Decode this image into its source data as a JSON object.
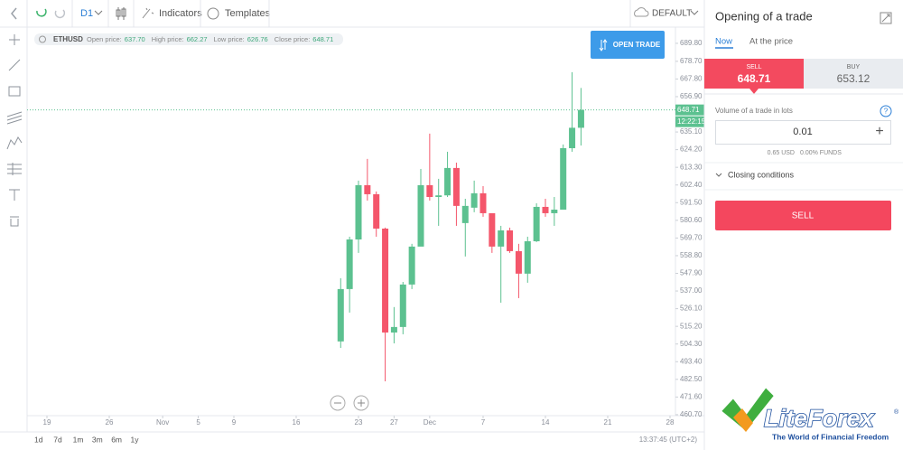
{
  "toolbar": {
    "timeframe": "D1",
    "indicators": "Indicators",
    "templates": "Templates",
    "layout": "DEFAULT"
  },
  "chart": {
    "type": "candlestick",
    "symbol": "ETHUSD",
    "legend": [
      {
        "label": "Open price:",
        "value": "637.70"
      },
      {
        "label": "High price:",
        "value": "662.27"
      },
      {
        "label": "Low price:",
        "value": "626.76"
      },
      {
        "label": "Close price:",
        "value": "648.71"
      }
    ],
    "open_trade": "OPEN TRADE",
    "ylim": [
      460.1,
      699.8
    ],
    "yticks": [
      {
        "value": 689.8,
        "label": "689.80"
      },
      {
        "value": 678.7,
        "label": "678.70"
      },
      {
        "value": 667.8,
        "label": "667.80"
      },
      {
        "value": 656.9,
        "label": "656.90"
      },
      {
        "value": 635.1,
        "label": "635.10"
      },
      {
        "value": 624.2,
        "label": "624.20"
      },
      {
        "value": 613.3,
        "label": "613.30"
      },
      {
        "value": 602.4,
        "label": "602.40"
      },
      {
        "value": 591.5,
        "label": "591.50"
      },
      {
        "value": 580.6,
        "label": "580.60"
      },
      {
        "value": 569.7,
        "label": "569.70"
      },
      {
        "value": 558.8,
        "label": "558.80"
      },
      {
        "value": 547.9,
        "label": "547.90"
      },
      {
        "value": 537,
        "label": "537.00"
      },
      {
        "value": 526.1,
        "label": "526.10"
      },
      {
        "value": 515.2,
        "label": "515.20"
      },
      {
        "value": 504.3,
        "label": "504.30"
      },
      {
        "value": 493.4,
        "label": "493.40"
      },
      {
        "value": 482.5,
        "label": "482.50"
      },
      {
        "value": 471.6,
        "label": "471.60"
      },
      {
        "value": 460.7,
        "label": "460.70"
      }
    ],
    "xticks": [
      "19",
      "26",
      "Nov",
      "5",
      "9",
      "16",
      "23",
      "27",
      "Dec",
      "7",
      "14",
      "21",
      "28"
    ],
    "candles": [
      {
        "open": 505.9,
        "high": 544.9,
        "low": 501.9,
        "close": 538.2
      },
      {
        "open": 538.2,
        "high": 570.5,
        "low": 523.7,
        "close": 568.8
      },
      {
        "open": 568.8,
        "high": 605.1,
        "low": 560.5,
        "close": 602.3
      },
      {
        "open": 602.3,
        "high": 618.5,
        "low": 592.8,
        "close": 596.7
      },
      {
        "open": 596.7,
        "high": 598.4,
        "low": 570.5,
        "close": 575.5
      },
      {
        "open": 575.5,
        "high": 576.1,
        "low": 481.3,
        "close": 511.4
      },
      {
        "open": 511.4,
        "high": 527.1,
        "low": 504.7,
        "close": 514.8
      },
      {
        "open": 514.8,
        "high": 542.6,
        "low": 510.3,
        "close": 541.0
      },
      {
        "open": 541.0,
        "high": 566.1,
        "low": 538.2,
        "close": 564.4
      },
      {
        "open": 564.4,
        "high": 612.3,
        "low": 564.9,
        "close": 602.3
      },
      {
        "open": 602.3,
        "high": 634.1,
        "low": 592.8,
        "close": 595.0
      },
      {
        "open": 595.0,
        "high": 606.2,
        "low": 577.2,
        "close": 596.0
      },
      {
        "open": 596.0,
        "high": 622.9,
        "low": 595.0,
        "close": 612.9
      },
      {
        "open": 612.9,
        "high": 616.2,
        "low": 577.2,
        "close": 589.5
      },
      {
        "open": 578.9,
        "high": 593.9,
        "low": 558.3,
        "close": 589.5
      },
      {
        "open": 588.4,
        "high": 605.1,
        "low": 585.6,
        "close": 597.3
      },
      {
        "open": 597.3,
        "high": 601.7,
        "low": 582.8,
        "close": 585.0
      },
      {
        "open": 585.0,
        "high": 585.0,
        "low": 560.5,
        "close": 564.4
      },
      {
        "open": 564.4,
        "high": 577.2,
        "low": 529.8,
        "close": 574.4
      },
      {
        "open": 574.4,
        "high": 576.1,
        "low": 560.5,
        "close": 561.6
      },
      {
        "open": 561.6,
        "high": 566.1,
        "low": 532.6,
        "close": 547.7
      },
      {
        "open": 547.7,
        "high": 570.5,
        "low": 542.1,
        "close": 567.7
      },
      {
        "open": 567.7,
        "high": 591.1,
        "low": 567.2,
        "close": 588.9
      },
      {
        "open": 588.9,
        "high": 593.9,
        "low": 582.8,
        "close": 585.0
      },
      {
        "open": 585.0,
        "high": 595.0,
        "low": 577.2,
        "close": 587.2
      },
      {
        "open": 587.2,
        "high": 627.4,
        "low": 587.2,
        "close": 625.1
      },
      {
        "open": 625.1,
        "high": 672.0,
        "low": 622.9,
        "close": 637.7
      },
      {
        "open": 637.7,
        "high": 662.27,
        "low": 626.76,
        "close": 648.71
      }
    ],
    "current_price": {
      "value": 648.71,
      "label": "648.71"
    },
    "time_label": "12:22:15",
    "colors": {
      "up": "#5cc190",
      "down": "#f4566b"
    }
  },
  "periods": [
    "1d",
    "7d",
    "1m",
    "3m",
    "6m",
    "1y"
  ],
  "clock": "13:37:45 (UTC+2)",
  "panel": {
    "title": "Opening of a trade",
    "tabs": [
      "Now",
      "At the price"
    ],
    "sell": {
      "label": "SELL",
      "price": "648.71"
    },
    "buy": {
      "label": "BUY",
      "price": "653.12"
    },
    "volume_label": "Volume of a trade in lots",
    "help": "?",
    "volume": "0.01",
    "plus": "+",
    "cost": "0.65 USD",
    "funds": "0.00% FUNDS",
    "closing": "Closing conditions",
    "sell_button": "SELL"
  },
  "logo": {
    "name": "LiteForex",
    "reg": "®",
    "slogan": "The World of Financial Freedom"
  }
}
